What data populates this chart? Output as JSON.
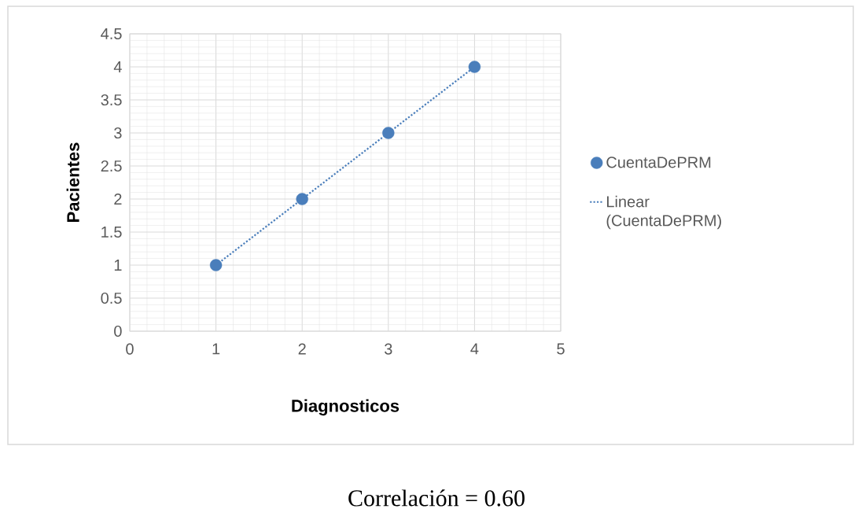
{
  "chart_data": {
    "type": "scatter",
    "xlabel": "Diagnosticos",
    "ylabel": "Pacientes",
    "series": [
      {
        "name": "CuentaDePRM",
        "color": "#4a7ebb",
        "x": [
          1,
          2,
          3,
          4
        ],
        "values": [
          1,
          2,
          3,
          4
        ],
        "marker": "circle"
      },
      {
        "name": "Linear (CuentaDePRM)",
        "type": "line",
        "color": "#4a7ebb",
        "x": [
          1,
          4
        ],
        "values": [
          1,
          4
        ],
        "line_style": "dotted",
        "marker": "none"
      }
    ],
    "xlim": [
      0,
      5
    ],
    "xticks": [
      0,
      1,
      2,
      3,
      4,
      5
    ],
    "ylim": [
      0,
      4.5
    ],
    "yticks": [
      0,
      0.5,
      1,
      1.5,
      2,
      2.5,
      3,
      3.5,
      4,
      4.5
    ],
    "grid": true,
    "legend": "right",
    "annotations": [
      "Correlación = 0.60"
    ]
  }
}
